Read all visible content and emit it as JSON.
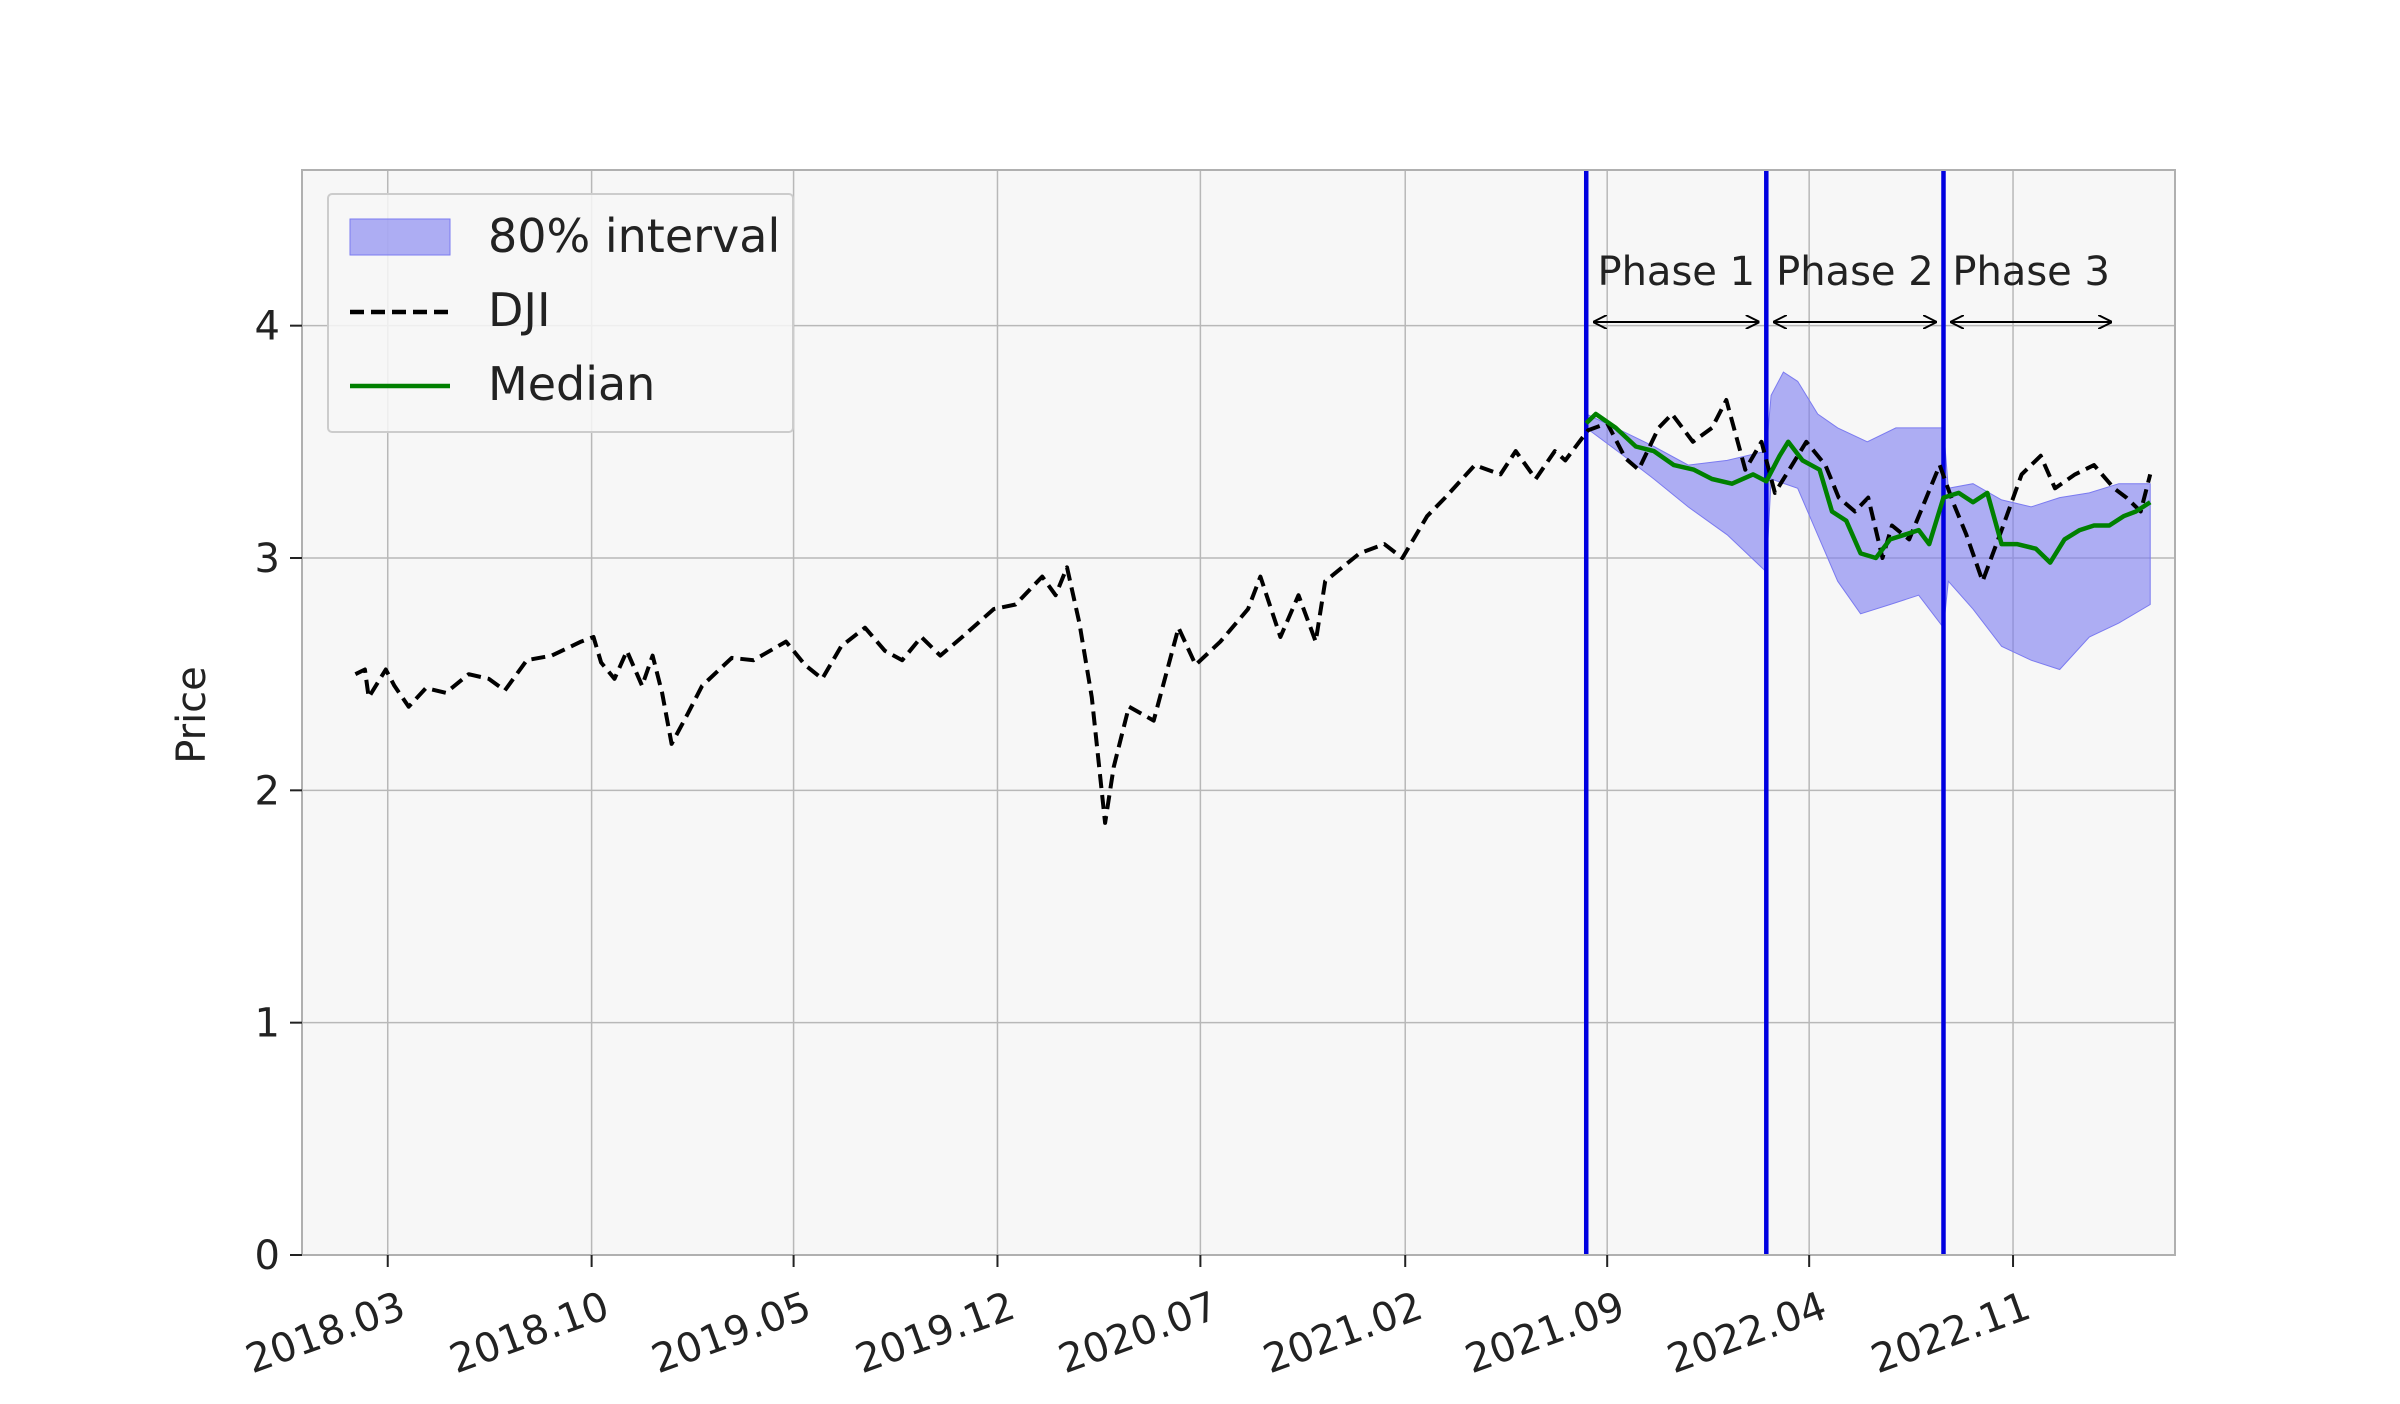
{
  "chart_data": {
    "type": "line",
    "title": "",
    "xlabel": "",
    "ylabel": "Price",
    "ylim": [
      0,
      4.67
    ],
    "xlim": [
      "2017-12-01",
      "2023-04-20"
    ],
    "yticks": [
      0,
      1,
      2,
      3,
      4
    ],
    "xticks": [
      {
        "date": "2018-03-01",
        "label": "2018.03"
      },
      {
        "date": "2018-10-01",
        "label": "2018.10"
      },
      {
        "date": "2019-05-01",
        "label": "2019.05"
      },
      {
        "date": "2019-12-01",
        "label": "2019.12"
      },
      {
        "date": "2020-07-01",
        "label": "2020.07"
      },
      {
        "date": "2021-02-01",
        "label": "2021.02"
      },
      {
        "date": "2021-09-01",
        "label": "2021.09"
      },
      {
        "date": "2022-04-01",
        "label": "2022.04"
      },
      {
        "date": "2022-11-01",
        "label": "2022.11"
      }
    ],
    "grid": true,
    "legend_position": "top-left",
    "legend": [
      {
        "name": "80% interval",
        "kind": "band",
        "color": "#7b7bf0"
      },
      {
        "name": "DJI",
        "kind": "dashed",
        "color": "#000000"
      },
      {
        "name": "Median",
        "kind": "line",
        "color": "#008000"
      }
    ],
    "phase_lines": [
      "2021-08-10",
      "2022-02-15",
      "2022-08-20"
    ],
    "phase_line_color": "#0000e0",
    "phases": [
      {
        "label": "Phase 1",
        "start": "2021-08-10",
        "end": "2022-02-15"
      },
      {
        "label": "Phase 2",
        "start": "2022-02-15",
        "end": "2022-08-20"
      },
      {
        "label": "Phase 3",
        "start": "2022-08-20",
        "end": "2023-02-20"
      }
    ],
    "series": [
      {
        "name": "DJI",
        "style": "dashed",
        "color": "#000000",
        "points": [
          [
            "2018-01-26",
            2.5
          ],
          [
            "2018-02-05",
            2.52
          ],
          [
            "2018-02-09",
            2.4
          ],
          [
            "2018-02-27",
            2.52
          ],
          [
            "2018-03-08",
            2.45
          ],
          [
            "2018-03-23",
            2.36
          ],
          [
            "2018-04-10",
            2.44
          ],
          [
            "2018-05-01",
            2.42
          ],
          [
            "2018-05-25",
            2.5
          ],
          [
            "2018-06-15",
            2.48
          ],
          [
            "2018-07-02",
            2.43
          ],
          [
            "2018-07-25",
            2.56
          ],
          [
            "2018-08-20",
            2.58
          ],
          [
            "2018-09-20",
            2.64
          ],
          [
            "2018-10-03",
            2.66
          ],
          [
            "2018-10-11",
            2.55
          ],
          [
            "2018-10-25",
            2.48
          ],
          [
            "2018-11-07",
            2.6
          ],
          [
            "2018-11-23",
            2.45
          ],
          [
            "2018-12-04",
            2.58
          ],
          [
            "2018-12-14",
            2.42
          ],
          [
            "2018-12-24",
            2.2
          ],
          [
            "2019-01-10",
            2.33
          ],
          [
            "2019-01-25",
            2.45
          ],
          [
            "2019-02-25",
            2.57
          ],
          [
            "2019-03-20",
            2.56
          ],
          [
            "2019-04-23",
            2.64
          ],
          [
            "2019-05-13",
            2.54
          ],
          [
            "2019-05-31",
            2.48
          ],
          [
            "2019-06-20",
            2.62
          ],
          [
            "2019-07-15",
            2.7
          ],
          [
            "2019-08-05",
            2.6
          ],
          [
            "2019-08-23",
            2.56
          ],
          [
            "2019-09-12",
            2.66
          ],
          [
            "2019-10-02",
            2.58
          ],
          [
            "2019-10-25",
            2.66
          ],
          [
            "2019-11-27",
            2.78
          ],
          [
            "2019-12-20",
            2.8
          ],
          [
            "2020-01-17",
            2.92
          ],
          [
            "2020-01-31",
            2.84
          ],
          [
            "2020-02-12",
            2.96
          ],
          [
            "2020-02-25",
            2.72
          ],
          [
            "2020-03-09",
            2.4
          ],
          [
            "2020-03-23",
            1.86
          ],
          [
            "2020-04-01",
            2.1
          ],
          [
            "2020-04-17",
            2.36
          ],
          [
            "2020-05-13",
            2.3
          ],
          [
            "2020-06-08",
            2.7
          ],
          [
            "2020-06-26",
            2.54
          ],
          [
            "2020-07-22",
            2.64
          ],
          [
            "2020-08-20",
            2.78
          ],
          [
            "2020-09-02",
            2.92
          ],
          [
            "2020-09-23",
            2.66
          ],
          [
            "2020-10-12",
            2.84
          ],
          [
            "2020-10-30",
            2.64
          ],
          [
            "2020-11-09",
            2.9
          ],
          [
            "2020-12-15",
            3.02
          ],
          [
            "2021-01-10",
            3.06
          ],
          [
            "2021-01-29",
            3.0
          ],
          [
            "2021-02-24",
            3.18
          ],
          [
            "2021-03-15",
            3.26
          ],
          [
            "2021-04-15",
            3.4
          ],
          [
            "2021-05-12",
            3.36
          ],
          [
            "2021-05-28",
            3.46
          ],
          [
            "2021-06-18",
            3.34
          ],
          [
            "2021-07-08",
            3.46
          ],
          [
            "2021-07-19",
            3.42
          ],
          [
            "2021-08-12",
            3.55
          ],
          [
            "2021-09-01",
            3.58
          ],
          [
            "2021-09-20",
            3.43
          ],
          [
            "2021-10-04",
            3.38
          ],
          [
            "2021-10-25",
            3.56
          ],
          [
            "2021-11-08",
            3.62
          ],
          [
            "2021-11-30",
            3.5
          ],
          [
            "2021-12-20",
            3.56
          ],
          [
            "2022-01-04",
            3.68
          ],
          [
            "2022-01-24",
            3.38
          ],
          [
            "2022-02-10",
            3.5
          ],
          [
            "2022-02-24",
            3.28
          ],
          [
            "2022-03-08",
            3.36
          ],
          [
            "2022-03-29",
            3.5
          ],
          [
            "2022-04-18",
            3.4
          ],
          [
            "2022-05-02",
            3.26
          ],
          [
            "2022-05-19",
            3.2
          ],
          [
            "2022-06-02",
            3.26
          ],
          [
            "2022-06-17",
            3.0
          ],
          [
            "2022-06-27",
            3.14
          ],
          [
            "2022-07-15",
            3.08
          ],
          [
            "2022-08-16",
            3.4
          ],
          [
            "2022-08-30",
            3.24
          ],
          [
            "2022-09-13",
            3.1
          ],
          [
            "2022-09-30",
            2.9
          ],
          [
            "2022-10-20",
            3.12
          ],
          [
            "2022-11-10",
            3.36
          ],
          [
            "2022-11-30",
            3.44
          ],
          [
            "2022-12-15",
            3.3
          ],
          [
            "2023-01-05",
            3.36
          ],
          [
            "2023-01-25",
            3.4
          ],
          [
            "2023-02-15",
            3.3
          ],
          [
            "2023-02-28",
            3.26
          ],
          [
            "2023-03-15",
            3.2
          ],
          [
            "2023-03-25",
            3.36
          ]
        ]
      },
      {
        "name": "Median",
        "style": "solid",
        "color": "#008000",
        "points": [
          [
            "2021-08-10",
            3.58
          ],
          [
            "2021-08-20",
            3.62
          ],
          [
            "2021-09-10",
            3.56
          ],
          [
            "2021-10-01",
            3.48
          ],
          [
            "2021-10-20",
            3.46
          ],
          [
            "2021-11-10",
            3.4
          ],
          [
            "2021-12-01",
            3.38
          ],
          [
            "2021-12-20",
            3.34
          ],
          [
            "2022-01-10",
            3.32
          ],
          [
            "2022-02-01",
            3.36
          ],
          [
            "2022-02-15",
            3.33
          ],
          [
            "2022-03-01",
            3.44
          ],
          [
            "2022-03-10",
            3.5
          ],
          [
            "2022-03-25",
            3.42
          ],
          [
            "2022-04-12",
            3.38
          ],
          [
            "2022-04-25",
            3.2
          ],
          [
            "2022-05-10",
            3.16
          ],
          [
            "2022-05-25",
            3.02
          ],
          [
            "2022-06-10",
            3.0
          ],
          [
            "2022-06-25",
            3.08
          ],
          [
            "2022-07-10",
            3.1
          ],
          [
            "2022-07-25",
            3.12
          ],
          [
            "2022-08-05",
            3.06
          ],
          [
            "2022-08-20",
            3.26
          ],
          [
            "2022-09-05",
            3.28
          ],
          [
            "2022-09-20",
            3.24
          ],
          [
            "2022-10-05",
            3.28
          ],
          [
            "2022-10-20",
            3.06
          ],
          [
            "2022-11-05",
            3.06
          ],
          [
            "2022-11-25",
            3.04
          ],
          [
            "2022-12-10",
            2.98
          ],
          [
            "2022-12-25",
            3.08
          ],
          [
            "2023-01-10",
            3.12
          ],
          [
            "2023-01-25",
            3.14
          ],
          [
            "2023-02-10",
            3.14
          ],
          [
            "2023-02-25",
            3.18
          ],
          [
            "2023-03-10",
            3.2
          ],
          [
            "2023-03-25",
            3.24
          ]
        ]
      }
    ],
    "interval": {
      "name": "80% interval",
      "color": "#7b7bf0",
      "upper": [
        [
          "2021-08-10",
          3.62
        ],
        [
          "2021-09-15",
          3.55
        ],
        [
          "2021-10-20",
          3.48
        ],
        [
          "2021-11-25",
          3.4
        ],
        [
          "2022-01-05",
          3.42
        ],
        [
          "2022-02-15",
          3.46
        ],
        [
          "2022-02-20",
          3.7
        ],
        [
          "2022-03-05",
          3.8
        ],
        [
          "2022-03-20",
          3.76
        ],
        [
          "2022-04-10",
          3.62
        ],
        [
          "2022-05-01",
          3.56
        ],
        [
          "2022-06-01",
          3.5
        ],
        [
          "2022-07-01",
          3.56
        ],
        [
          "2022-08-20",
          3.56
        ],
        [
          "2022-08-25",
          3.3
        ],
        [
          "2022-09-20",
          3.32
        ],
        [
          "2022-10-20",
          3.25
        ],
        [
          "2022-11-20",
          3.22
        ],
        [
          "2022-12-20",
          3.26
        ],
        [
          "2023-01-20",
          3.28
        ],
        [
          "2023-02-20",
          3.32
        ],
        [
          "2023-03-25",
          3.32
        ]
      ],
      "lower": [
        [
          "2021-08-10",
          3.56
        ],
        [
          "2021-09-15",
          3.45
        ],
        [
          "2021-10-20",
          3.34
        ],
        [
          "2021-11-25",
          3.22
        ],
        [
          "2022-01-05",
          3.1
        ],
        [
          "2022-02-15",
          2.94
        ],
        [
          "2022-02-20",
          3.34
        ],
        [
          "2022-03-20",
          3.3
        ],
        [
          "2022-04-10",
          3.1
        ],
        [
          "2022-05-01",
          2.9
        ],
        [
          "2022-05-25",
          2.76
        ],
        [
          "2022-06-25",
          2.8
        ],
        [
          "2022-07-25",
          2.84
        ],
        [
          "2022-08-20",
          2.7
        ],
        [
          "2022-08-25",
          2.9
        ],
        [
          "2022-09-20",
          2.78
        ],
        [
          "2022-10-20",
          2.62
        ],
        [
          "2022-11-20",
          2.56
        ],
        [
          "2022-12-20",
          2.52
        ],
        [
          "2023-01-20",
          2.66
        ],
        [
          "2023-02-20",
          2.72
        ],
        [
          "2023-03-25",
          2.8
        ]
      ]
    }
  }
}
